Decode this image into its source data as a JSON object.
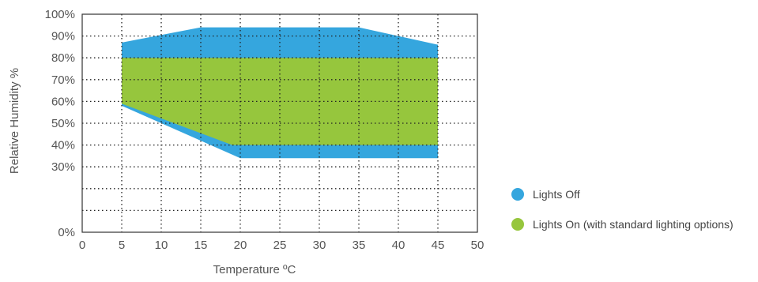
{
  "chart_data": {
    "type": "area",
    "xlabel": "Temperature ºC",
    "ylabel": "Relative Humidity %",
    "xlim": [
      0,
      50
    ],
    "ylim": [
      0,
      100
    ],
    "x_ticks": [
      0,
      5,
      10,
      15,
      20,
      25,
      30,
      35,
      40,
      45,
      50
    ],
    "x_tick_labels": [
      "0",
      "5",
      "10",
      "15",
      "20",
      "25",
      "30",
      "35",
      "40",
      "45",
      "50"
    ],
    "y_ticks": [
      0,
      10,
      20,
      30,
      40,
      50,
      60,
      70,
      80,
      90,
      100
    ],
    "y_tick_labels": [
      "0%",
      "",
      "",
      "30%",
      "40%",
      "50%",
      "60%",
      "70%",
      "80%",
      "90%",
      "100%"
    ],
    "grid": true,
    "grid_style": "dotted",
    "legend_position": "right",
    "series": [
      {
        "name": "Lights Off",
        "color": "#35a6de",
        "polygon": [
          [
            5,
            87
          ],
          [
            15,
            94
          ],
          [
            35,
            94
          ],
          [
            45,
            86
          ],
          [
            45,
            34
          ],
          [
            20,
            34
          ],
          [
            5,
            58
          ]
        ]
      },
      {
        "name": "Lights On (with standard lighting options)",
        "color": "#96c63d",
        "polygon": [
          [
            5,
            80
          ],
          [
            45,
            80
          ],
          [
            45,
            40
          ],
          [
            19,
            40
          ],
          [
            5,
            59
          ]
        ]
      }
    ]
  }
}
